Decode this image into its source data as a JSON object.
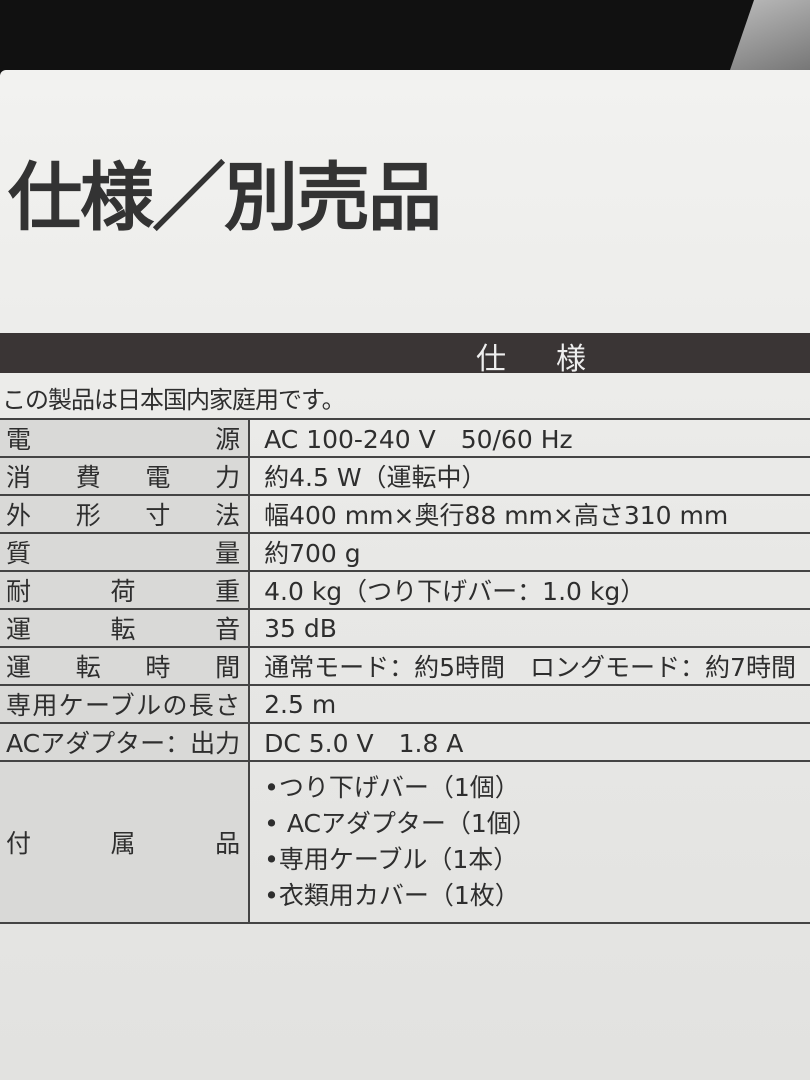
{
  "title": "仕様／別売品",
  "section_header": "仕様",
  "intro": "この製品は日本国内家庭用です。",
  "specs": [
    {
      "label": "電源",
      "value": "AC 100-240 V　50/60 Hz"
    },
    {
      "label": "消費電力",
      "value": "約4.5 W（運転中）"
    },
    {
      "label": "外形寸法",
      "value": "幅400 mm×奥行88 mm×高さ310 mm"
    },
    {
      "label": "質量",
      "value": "約700 g"
    },
    {
      "label": "耐荷重",
      "value": "4.0 kg（つり下げバー：1.0 kg）"
    },
    {
      "label": "運転音",
      "value": "35 dB"
    },
    {
      "label": "運転時間",
      "value": "通常モード：約5時間　ロングモード：約7時間"
    },
    {
      "label": "専用ケーブルの長さ",
      "value": "2.5 m"
    },
    {
      "label": "ACアダプター：出力",
      "value": "DC 5.0 V　1.8 A"
    }
  ],
  "accessories": {
    "label": "付属品",
    "items": [
      "•つり下げバー（1個）",
      "• ACアダプター（1個）",
      "•専用ケーブル（1本）",
      "•衣類用カバー（1枚）"
    ]
  }
}
